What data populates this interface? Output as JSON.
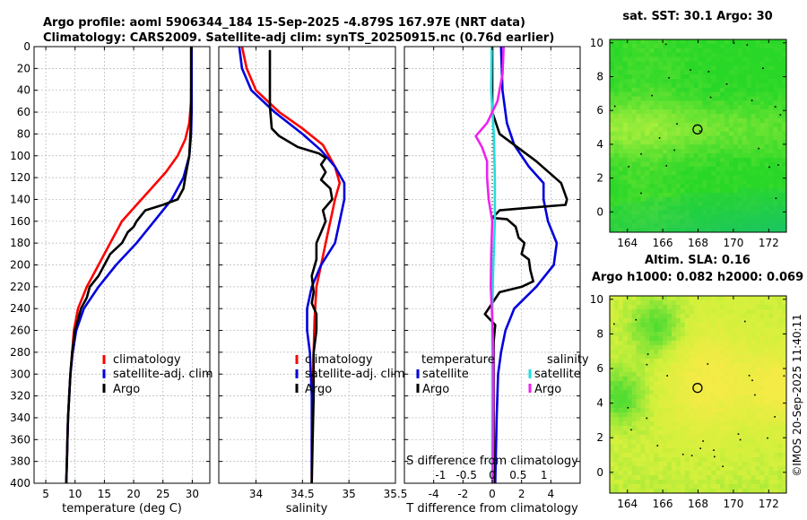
{
  "title_line1": "Argo profile: aoml 5906344_184 15-Sep-2025 -4.879S 167.97E (NRT data)",
  "title_line2": "Climatology: CARS2009. Satellite-adj clim: synTS_20250915.nc (0.76d earlier)",
  "timestamp": "©IMOS 20-Sep-2025 11:40:11",
  "colors": {
    "climatology": "#ff0000",
    "satellite": "#0000dd",
    "argo": "#000000",
    "magenta": "#ee22ee",
    "cyan": "#22dddd",
    "grid": "#b0b0b0"
  },
  "chart_data": [
    {
      "type": "line",
      "id": "temperature",
      "xlabel": "temperature (deg C)",
      "xlim": [
        3,
        33
      ],
      "ylim": [
        400,
        0
      ],
      "xticks": [
        5,
        10,
        15,
        20,
        25,
        30
      ],
      "xticklabels": [
        "5",
        "10",
        "15",
        "20",
        "25",
        "30"
      ],
      "yticks": [
        0,
        20,
        40,
        60,
        80,
        100,
        120,
        140,
        160,
        180,
        200,
        220,
        240,
        260,
        280,
        300,
        320,
        340,
        360,
        380,
        400
      ],
      "legend": [
        "climatology",
        "satellite-adj. clim",
        "Argo"
      ],
      "series": [
        {
          "name": "climatology",
          "color": "#ff0000",
          "points": [
            [
              29.9,
              0
            ],
            [
              29.8,
              50
            ],
            [
              29.5,
              70
            ],
            [
              28.8,
              85
            ],
            [
              27.5,
              100
            ],
            [
              25.5,
              115
            ],
            [
              23,
              130
            ],
            [
              20.5,
              145
            ],
            [
              18,
              160
            ],
            [
              16,
              180
            ],
            [
              14,
              200
            ],
            [
              12,
              220
            ],
            [
              10.5,
              240
            ],
            [
              9.8,
              260
            ],
            [
              9.5,
              280
            ],
            [
              9.2,
              300
            ],
            [
              9,
              320
            ],
            [
              8.8,
              340
            ],
            [
              8.7,
              360
            ],
            [
              8.6,
              380
            ],
            [
              8.5,
              400
            ]
          ]
        },
        {
          "name": "satellite-adj. clim",
          "color": "#0000dd",
          "points": [
            [
              29.9,
              0
            ],
            [
              29.9,
              60
            ],
            [
              29.8,
              80
            ],
            [
              29.5,
              100
            ],
            [
              28.5,
              120
            ],
            [
              26.5,
              140
            ],
            [
              23.5,
              160
            ],
            [
              20.5,
              180
            ],
            [
              17,
              200
            ],
            [
              14,
              220
            ],
            [
              11.5,
              240
            ],
            [
              10.2,
              260
            ],
            [
              9.6,
              280
            ],
            [
              9.2,
              300
            ],
            [
              9,
              320
            ],
            [
              8.8,
              340
            ],
            [
              8.7,
              360
            ],
            [
              8.6,
              380
            ],
            [
              8.5,
              400
            ]
          ]
        },
        {
          "name": "Argo",
          "color": "#000000",
          "points": [
            [
              29.8,
              0
            ],
            [
              29.8,
              60
            ],
            [
              29.7,
              80
            ],
            [
              29.5,
              100
            ],
            [
              28.8,
              120
            ],
            [
              28.5,
              130
            ],
            [
              27.5,
              140
            ],
            [
              25,
              145
            ],
            [
              22,
              150
            ],
            [
              20.5,
              160
            ],
            [
              20,
              165
            ],
            [
              19,
              170
            ],
            [
              18,
              180
            ],
            [
              16,
              190
            ],
            [
              15,
              200
            ],
            [
              14,
              210
            ],
            [
              12.5,
              220
            ],
            [
              12,
              230
            ],
            [
              11,
              240
            ],
            [
              10.5,
              250
            ],
            [
              10,
              260
            ],
            [
              9.5,
              280
            ],
            [
              9.2,
              300
            ],
            [
              9,
              320
            ],
            [
              8.8,
              340
            ],
            [
              8.7,
              360
            ],
            [
              8.6,
              380
            ],
            [
              8.5,
              400
            ]
          ]
        }
      ]
    },
    {
      "type": "line",
      "id": "salinity",
      "xlabel": "salinity",
      "xlim": [
        33.6,
        35.5
      ],
      "ylim": [
        400,
        0
      ],
      "xticks": [
        34,
        34.5,
        35,
        35.5
      ],
      "xticklabels": [
        "34",
        "34.5",
        "35",
        "35.5"
      ],
      "legend": [
        "climatology",
        "satellite-adj. clim",
        "Argo"
      ],
      "series": [
        {
          "name": "climatology",
          "color": "#ff0000",
          "points": [
            [
              33.85,
              0
            ],
            [
              33.9,
              20
            ],
            [
              34,
              40
            ],
            [
              34.25,
              60
            ],
            [
              34.5,
              75
            ],
            [
              34.72,
              90
            ],
            [
              34.85,
              110
            ],
            [
              34.9,
              125
            ],
            [
              34.85,
              140
            ],
            [
              34.8,
              160
            ],
            [
              34.75,
              180
            ],
            [
              34.7,
              200
            ],
            [
              34.65,
              220
            ],
            [
              34.63,
              250
            ],
            [
              34.62,
              280
            ],
            [
              34.61,
              320
            ],
            [
              34.6,
              360
            ],
            [
              34.6,
              400
            ]
          ]
        },
        {
          "name": "satellite-adj. clim",
          "color": "#0000dd",
          "points": [
            [
              33.82,
              0
            ],
            [
              33.85,
              20
            ],
            [
              33.95,
              40
            ],
            [
              34.2,
              60
            ],
            [
              34.5,
              80
            ],
            [
              34.7,
              95
            ],
            [
              34.85,
              110
            ],
            [
              34.95,
              125
            ],
            [
              34.95,
              140
            ],
            [
              34.9,
              160
            ],
            [
              34.85,
              180
            ],
            [
              34.7,
              200
            ],
            [
              34.6,
              220
            ],
            [
              34.55,
              240
            ],
            [
              34.55,
              260
            ],
            [
              34.58,
              280
            ],
            [
              34.6,
              320
            ],
            [
              34.6,
              360
            ],
            [
              34.6,
              400
            ]
          ]
        },
        {
          "name": "Argo",
          "color": "#000000",
          "points": [
            [
              34.15,
              3
            ],
            [
              34.15,
              30
            ],
            [
              34.15,
              55
            ],
            [
              34.17,
              75
            ],
            [
              34.25,
              82
            ],
            [
              34.45,
              92
            ],
            [
              34.68,
              98
            ],
            [
              34.75,
              102
            ],
            [
              34.7,
              108
            ],
            [
              34.75,
              115
            ],
            [
              34.7,
              122
            ],
            [
              34.8,
              130
            ],
            [
              34.82,
              140
            ],
            [
              34.72,
              150
            ],
            [
              34.75,
              160
            ],
            [
              34.7,
              170
            ],
            [
              34.65,
              180
            ],
            [
              34.65,
              195
            ],
            [
              34.6,
              210
            ],
            [
              34.62,
              225
            ],
            [
              34.6,
              235
            ],
            [
              34.65,
              245
            ],
            [
              34.65,
              260
            ],
            [
              34.62,
              280
            ],
            [
              34.62,
              320
            ],
            [
              34.61,
              360
            ],
            [
              34.6,
              400
            ]
          ]
        }
      ]
    },
    {
      "type": "line",
      "id": "difference",
      "xlabel": "T difference from climatology",
      "x2label": "S difference from climatology",
      "xlim": [
        -6,
        6
      ],
      "ylim": [
        400,
        0
      ],
      "xticks": [
        -4,
        -2,
        0,
        2,
        4
      ],
      "xticklabels": [
        "-4",
        "-2",
        "0",
        "2",
        "4"
      ],
      "x2ticks": [
        -1,
        -0.5,
        0,
        0.5,
        1
      ],
      "x2ticklabels": [
        "-1",
        "-0.5",
        "0",
        "0.5",
        "1"
      ],
      "legend_temperature_title": "temperature",
      "legend_salinity_title": "salinity",
      "legend_labels": [
        "satellite",
        "Argo",
        "satellite",
        "Argo"
      ],
      "series": [
        {
          "name": "T satellite",
          "color": "#0000dd",
          "points": [
            [
              0.6,
              0
            ],
            [
              0.7,
              40
            ],
            [
              1.0,
              70
            ],
            [
              1.5,
              90
            ],
            [
              2.5,
              110
            ],
            [
              3.5,
              125
            ],
            [
              3.5,
              140
            ],
            [
              3.8,
              160
            ],
            [
              4.4,
              180
            ],
            [
              4.2,
              200
            ],
            [
              3,
              220
            ],
            [
              1.5,
              240
            ],
            [
              0.9,
              260
            ],
            [
              0.6,
              280
            ],
            [
              0.4,
              300
            ],
            [
              0.3,
              340
            ],
            [
              0.2,
              400
            ]
          ]
        },
        {
          "name": "T Argo",
          "color": "#000000",
          "points": [
            [
              0,
              0
            ],
            [
              0,
              60
            ],
            [
              0.5,
              80
            ],
            [
              1.5,
              90
            ],
            [
              3,
              105
            ],
            [
              4.7,
              125
            ],
            [
              5.1,
              140
            ],
            [
              5.0,
              145
            ],
            [
              2.2,
              148
            ],
            [
              0.5,
              150
            ],
            [
              0,
              157
            ],
            [
              1.0,
              158
            ],
            [
              1.6,
              165
            ],
            [
              1.8,
              175
            ],
            [
              2.2,
              180
            ],
            [
              2.0,
              190
            ],
            [
              2.5,
              195
            ],
            [
              2.6,
              205
            ],
            [
              2.8,
              215
            ],
            [
              2.0,
              220
            ],
            [
              0.5,
              225
            ],
            [
              0,
              235
            ],
            [
              -0.5,
              245
            ],
            [
              0.2,
              255
            ],
            [
              0.1,
              270
            ],
            [
              0.1,
              400
            ]
          ]
        },
        {
          "name": "S satellite",
          "color": "#22dddd",
          "points": [
            [
              -0.01,
              0
            ],
            [
              -0.02,
              40
            ],
            [
              0.03,
              80
            ],
            [
              0.05,
              120
            ],
            [
              0.05,
              160
            ],
            [
              0.02,
              200
            ],
            [
              0,
              240
            ],
            [
              0,
              300
            ],
            [
              0,
              400
            ]
          ]
        },
        {
          "name": "S Argo",
          "color": "#ee22ee",
          "points": [
            [
              0.22,
              0
            ],
            [
              0.2,
              25
            ],
            [
              0.1,
              50
            ],
            [
              -0.1,
              70
            ],
            [
              -0.32,
              82
            ],
            [
              -0.2,
              92
            ],
            [
              -0.1,
              105
            ],
            [
              -0.1,
              120
            ],
            [
              -0.07,
              140
            ],
            [
              0,
              160
            ],
            [
              -0.02,
              190
            ],
            [
              -0.03,
              220
            ],
            [
              0,
              250
            ],
            [
              0.02,
              280
            ],
            [
              0.02,
              320
            ],
            [
              0.01,
              400
            ]
          ]
        }
      ]
    },
    {
      "type": "heatmap",
      "id": "sst",
      "title": "sat. SST: 30.1 Argo: 30",
      "xlim": [
        163,
        173
      ],
      "ylim": [
        -1.2,
        10.2
      ],
      "xticks": [
        164,
        166,
        168,
        170,
        172
      ],
      "xticklabels": [
        "164",
        "166",
        "168",
        "170",
        "172"
      ],
      "yticks": [
        0,
        2,
        4,
        6,
        8,
        10
      ],
      "yticklabels": [
        "0",
        "2",
        "4",
        "6",
        "8",
        "10"
      ],
      "marker": [
        167.97,
        4.88
      ]
    },
    {
      "type": "heatmap",
      "id": "sla",
      "title": "Altim. SLA: 0.16",
      "subtitle": "Argo h1000: 0.082 h2000: 0.069",
      "xlim": [
        163,
        173
      ],
      "ylim": [
        -1.2,
        10.2
      ],
      "xticks": [
        164,
        166,
        168,
        170,
        172
      ],
      "xticklabels": [
        "164",
        "166",
        "168",
        "170",
        "172"
      ],
      "yticks": [
        0,
        2,
        4,
        6,
        8,
        10
      ],
      "yticklabels": [
        "0",
        "2",
        "4",
        "6",
        "8",
        "10"
      ],
      "marker": [
        167.97,
        4.88
      ]
    }
  ]
}
